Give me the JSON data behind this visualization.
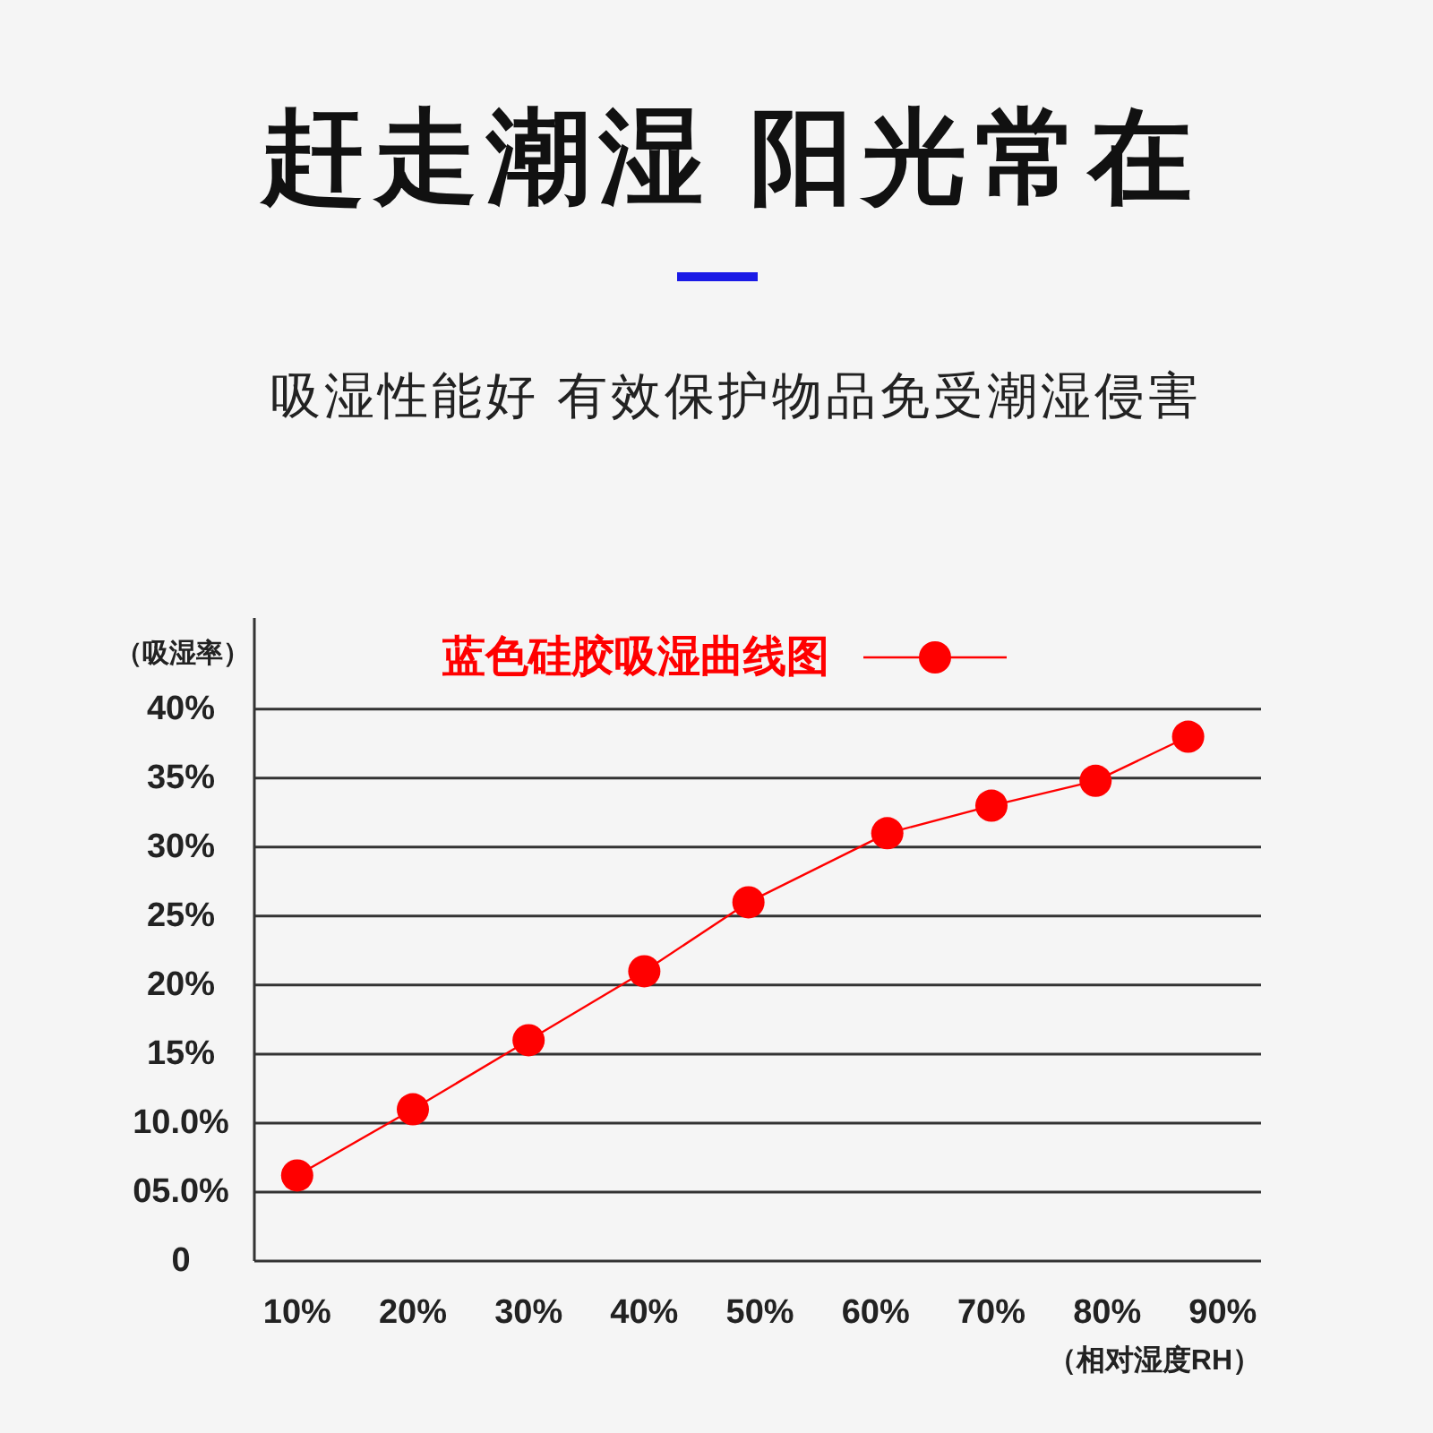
{
  "chart_data": {
    "type": "line",
    "title": "赶走潮湿 阳光常在",
    "subtitle": "吸湿性能好 有效保护物品免受潮湿侵害",
    "xlabel": "（相对湿度RH）",
    "ylabel": "（吸湿率）",
    "x": [
      10,
      20,
      30,
      40,
      49,
      61,
      70,
      79,
      87
    ],
    "series": [
      {
        "name": "蓝色硅胶吸湿曲线图",
        "color": "#ff0000",
        "values": [
          6.2,
          11,
          16,
          21,
          26,
          31,
          33,
          34.8,
          38
        ]
      }
    ],
    "xlim": [
      6.3,
      93.3
    ],
    "xticks": [
      {
        "value": 10,
        "label": "10%"
      },
      {
        "value": 20,
        "label": "20%"
      },
      {
        "value": 30,
        "label": "30%"
      },
      {
        "value": 40,
        "label": "40%"
      },
      {
        "value": 50,
        "label": "50%"
      },
      {
        "value": 60,
        "label": "60%"
      },
      {
        "value": 70,
        "label": "70%"
      },
      {
        "value": 80,
        "label": "80%"
      },
      {
        "value": 90,
        "label": "90%"
      }
    ],
    "ylim": [
      0,
      46.6
    ],
    "yticks": [
      0,
      {
        "value": 5,
        "label": "05.0%"
      },
      {
        "value": 10,
        "label": "10.0%"
      },
      {
        "value": 15,
        "label": "15%"
      },
      {
        "value": 20,
        "label": "20%"
      },
      {
        "value": 25,
        "label": "25%"
      },
      {
        "value": 30,
        "label": "30%"
      },
      {
        "value": 35,
        "label": "35%"
      },
      {
        "value": 40,
        "label": "40%"
      }
    ],
    "grid": "y",
    "legend": "top",
    "marker": "circle",
    "line_style": "solid"
  }
}
